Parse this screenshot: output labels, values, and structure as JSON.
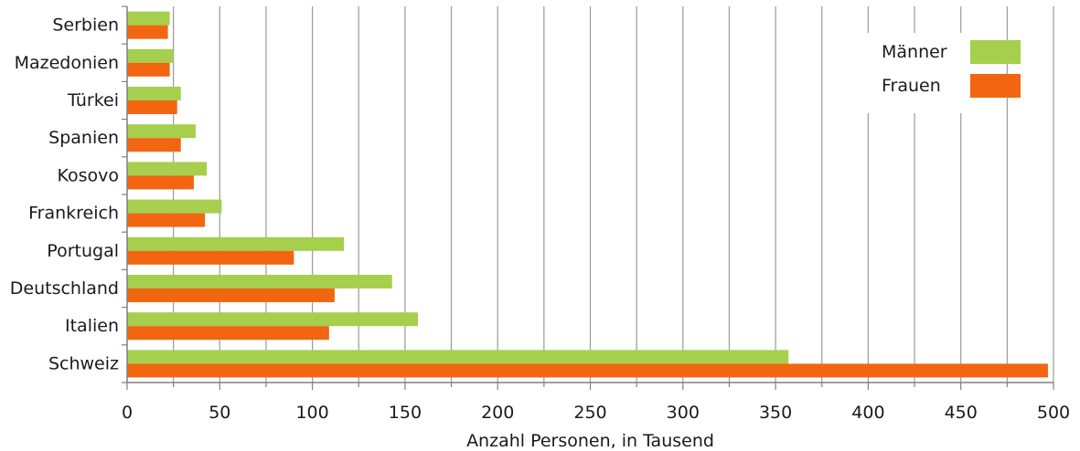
{
  "chart_data": {
    "type": "bar",
    "orientation": "horizontal",
    "categories": [
      "Serbien",
      "Mazedonien",
      "Türkei",
      "Spanien",
      "Kosovo",
      "Frankreich",
      "Portugal",
      "Deutschland",
      "Italien",
      "Schweiz"
    ],
    "series": [
      {
        "name": "Männer",
        "color": "#a5cf4c",
        "values": [
          23,
          25,
          29,
          37,
          43,
          51,
          117,
          143,
          157,
          357
        ]
      },
      {
        "name": "Frauen",
        "color": "#f26511",
        "values": [
          22,
          23,
          27,
          29,
          36,
          42,
          90,
          112,
          109,
          497
        ]
      }
    ],
    "xlabel": "Anzahl Personen, in Tausend",
    "ylabel": "",
    "xlim": [
      0,
      500
    ],
    "x_ticks": [
      "0",
      "50",
      "100",
      "150",
      "200",
      "250",
      "300",
      "350",
      "400",
      "450",
      "500"
    ],
    "x_tick_values": [
      0,
      50,
      100,
      150,
      200,
      250,
      300,
      350,
      400,
      450,
      500
    ],
    "minor_gridline_step": 25,
    "grid": true,
    "legend_position": "top-right"
  }
}
